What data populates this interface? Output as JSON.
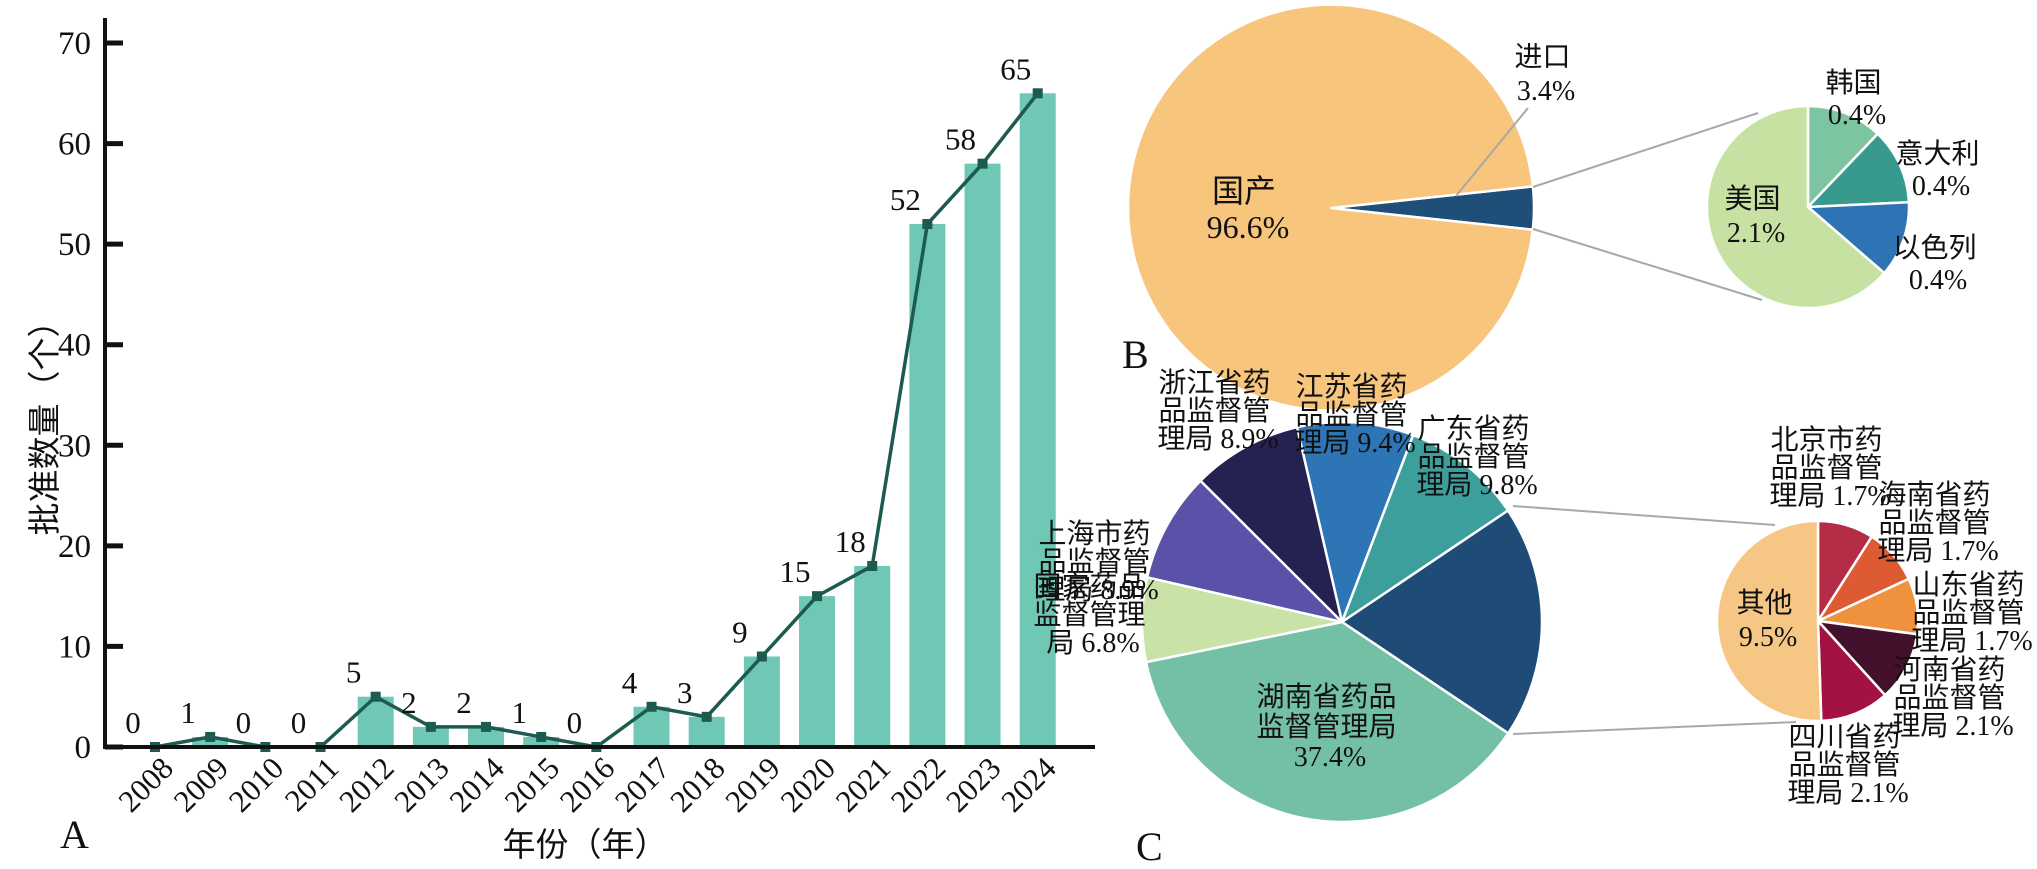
{
  "background": "#ffffff",
  "panels": {
    "a": {
      "letter": "A",
      "xlabel": "年份（年）",
      "ylabel": "批准数量（个）"
    },
    "b": {
      "letter": "B"
    },
    "c": {
      "letter": "C"
    }
  },
  "labels": {
    "b": {
      "domestic": [
        "国产",
        "96.6%"
      ],
      "import": [
        "进口",
        "3.4%"
      ],
      "korea": [
        "韩国",
        "0.4%"
      ],
      "italy": [
        "意大利",
        "0.4%"
      ],
      "israel": [
        "以色列",
        "0.4%"
      ],
      "usa": [
        "美国",
        "2.1%"
      ]
    },
    "c": {
      "zhejiang": [
        "浙江省药",
        "品监督管",
        "理局 8.9%"
      ],
      "jiangsu": [
        "江苏省药",
        "品监督管",
        "理局 9.4%"
      ],
      "guangdong": [
        "广东省药",
        "品监督管",
        "理局 9.8%"
      ],
      "shanghai": [
        "上海市药",
        "品监督管",
        "理局 8.9%"
      ],
      "nmpa": [
        "国家药品",
        "监督管理",
        "局 6.8%"
      ],
      "hunan": [
        "湖南省药品",
        "监督管理局",
        "37.4%"
      ],
      "beijing": [
        "北京市药",
        "品监督管",
        "理局 1.7%"
      ],
      "hainan": [
        "海南省药",
        "品监督管",
        "理局 1.7%"
      ],
      "shandong": [
        "山东省药",
        "品监督管",
        "理局 1.7%"
      ],
      "henan": [
        "河南省药",
        "品监督管",
        "理局 2.1%"
      ],
      "sichuan": [
        "四川省药",
        "品监督管",
        "理局 2.1%"
      ],
      "other": [
        "其他",
        "9.5%"
      ]
    }
  },
  "chart_data": [
    {
      "id": "approvals-by-year",
      "panel": "A",
      "type": "bar",
      "overlay": "line-with-markers",
      "xlabel": "年份（年）",
      "ylabel": "批准数量（个）",
      "categories": [
        "2008",
        "2009",
        "2010",
        "2011",
        "2012",
        "2013",
        "2014",
        "2015",
        "2016",
        "2017",
        "2018",
        "2019",
        "2020",
        "2021",
        "2022",
        "2023",
        "2024"
      ],
      "values": [
        0,
        1,
        0,
        0,
        5,
        2,
        2,
        1,
        0,
        4,
        3,
        9,
        15,
        18,
        52,
        58,
        65
      ],
      "ylim": [
        0,
        70
      ],
      "yticks": [
        0,
        10,
        20,
        30,
        40,
        50,
        60,
        70
      ],
      "grid": false,
      "bar_color": "#6fc7b5",
      "line_color": "#1d5a50"
    },
    {
      "id": "origin-share",
      "panel": "B",
      "type": "pie",
      "start_angle": 83.9,
      "total": 100,
      "slices": [
        {
          "label": "进口",
          "value": 3.4,
          "color": "#1f4e79"
        },
        {
          "label": "国产",
          "value": 96.6,
          "color": "#f8c57d"
        }
      ],
      "sub_pie": {
        "start_angle": 0,
        "total": 3.3,
        "slices": [
          {
            "label": "韩国",
            "value": 0.4,
            "color": "#7cc5a0"
          },
          {
            "label": "意大利",
            "value": 0.4,
            "color": "#38998f"
          },
          {
            "label": "以色列",
            "value": 0.4,
            "color": "#2e74b5"
          },
          {
            "label": "美国",
            "value": 2.1,
            "color": "#c7e1a3"
          }
        ]
      }
    },
    {
      "id": "regulator-share",
      "panel": "C",
      "type": "pie",
      "start_angle": -13,
      "total": 100,
      "slices": [
        {
          "label": "江苏省药品监督管理局",
          "value": 9.4,
          "color": "#2e75b6"
        },
        {
          "label": "广东省药品监督管理局",
          "value": 9.8,
          "color": "#3d9f9b"
        },
        {
          "label": "",
          "expanded_into_sub_pie": true,
          "value": 18.8,
          "color": "#1f4c77"
        },
        {
          "label": "湖南省药品监督管理局",
          "value": 37.4,
          "color": "#74c0a4"
        },
        {
          "label": "国家药品监督管理局",
          "value": 6.8,
          "color": "#c9e2a8"
        },
        {
          "label": "上海市药品监督管理局",
          "value": 8.9,
          "color": "#5a52a8"
        },
        {
          "label": "浙江省药品监督管理局",
          "value": 8.9,
          "color": "#252150"
        }
      ],
      "sub_pie": {
        "start_angle": 0,
        "total": 18.8,
        "slices": [
          {
            "label": "北京市药品监督管理局",
            "value": 1.7,
            "color": "#b52c47"
          },
          {
            "label": "海南省药品监督管理局",
            "value": 1.7,
            "color": "#de5a33"
          },
          {
            "label": "山东省药品监督管理局",
            "value": 1.7,
            "color": "#f0913d"
          },
          {
            "label": "河南省药品监督管理局",
            "value": 2.1,
            "color": "#43112b"
          },
          {
            "label": "四川省药品监督管理局",
            "value": 2.1,
            "color": "#a31240"
          },
          {
            "label": "其他",
            "value": 9.5,
            "color": "#f6c684"
          }
        ]
      }
    }
  ]
}
